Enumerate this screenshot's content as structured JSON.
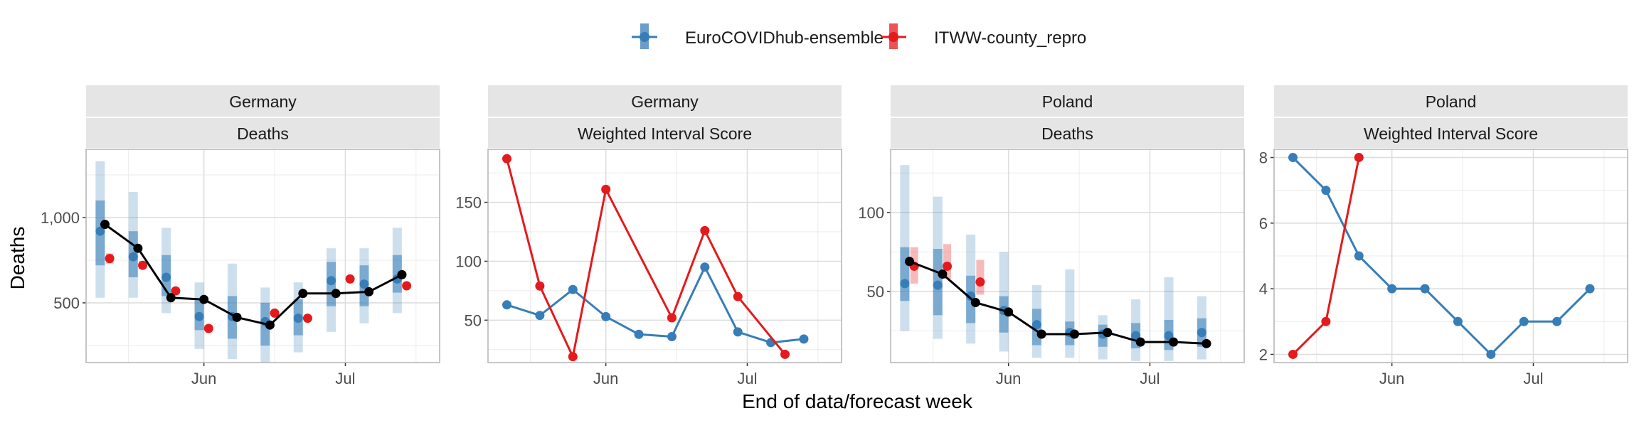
{
  "figure": {
    "ylabel": "Deaths",
    "xlabel": "End of data/forecast week"
  },
  "legend": {
    "placement": "top",
    "items": [
      {
        "name": "EuroCOVIDhub-ensemble",
        "color": "#377EB8"
      },
      {
        "name": "ITWW-county_repro",
        "color": "#E41A1C"
      }
    ]
  },
  "chart_data": [
    {
      "type": "line",
      "strip_top": "Germany",
      "strip_bottom": "Deaths",
      "ylim": [
        150,
        1400
      ],
      "yticks": [
        500,
        1000
      ],
      "ytick_labels": [
        "500",
        "1,000"
      ],
      "xticks": [
        "2021-06-01",
        "2021-07-01"
      ],
      "xtick_labels": [
        "Jun",
        "Jul"
      ],
      "xlim": [
        "2021-05-07",
        "2021-07-21"
      ],
      "grid": true,
      "observed": {
        "color": "#000000",
        "x": [
          "2021-05-11",
          "2021-05-18",
          "2021-05-25",
          "2021-06-01",
          "2021-06-08",
          "2021-06-15",
          "2021-06-22",
          "2021-06-29",
          "2021-07-06",
          "2021-07-13"
        ],
        "y": [
          960,
          820,
          530,
          520,
          415,
          370,
          555,
          555,
          565,
          665
        ]
      },
      "forecasts": [
        {
          "model": "EuroCOVIDhub-ensemble",
          "color": "#377EB8",
          "x": [
            "2021-05-10",
            "2021-05-17",
            "2021-05-24",
            "2021-05-31",
            "2021-06-07",
            "2021-06-14",
            "2021-06-21",
            "2021-06-28",
            "2021-07-05",
            "2021-07-12"
          ],
          "median": [
            920,
            770,
            650,
            420,
            420,
            390,
            410,
            630,
            610,
            640
          ],
          "inner": [
            [
              720,
              1100
            ],
            [
              650,
              920
            ],
            [
              540,
              780
            ],
            [
              340,
              520
            ],
            [
              290,
              540
            ],
            [
              250,
              500
            ],
            [
              310,
              520
            ],
            [
              480,
              740
            ],
            [
              480,
              720
            ],
            [
              560,
              780
            ]
          ],
          "outer": [
            [
              530,
              1330
            ],
            [
              530,
              1150
            ],
            [
              440,
              940
            ],
            [
              230,
              620
            ],
            [
              170,
              730
            ],
            [
              150,
              590
            ],
            [
              210,
              620
            ],
            [
              330,
              820
            ],
            [
              380,
              820
            ],
            [
              440,
              940
            ]
          ]
        },
        {
          "model": "ITWW-county_repro",
          "color": "#E41A1C",
          "x": [
            "2021-05-10",
            "2021-05-17",
            "2021-05-24",
            "2021-05-31",
            "2021-06-07",
            "2021-06-14",
            "2021-06-21",
            "2021-06-28",
            "2021-07-05",
            "2021-07-12"
          ],
          "median": [
            760,
            720,
            570,
            350,
            440,
            410,
            640,
            600
          ],
          "x_median": [
            "2021-05-12",
            "2021-05-19",
            "2021-05-26",
            "2021-06-02",
            "2021-06-16",
            "2021-06-23",
            "2021-07-02",
            "2021-07-14"
          ],
          "inner": [
            [
              730,
              790
            ],
            [
              700,
              745
            ],
            [
              550,
              590
            ],
            [
              335,
              370
            ],
            [
              425,
              455
            ],
            [
              395,
              425
            ],
            [
              625,
              655
            ],
            [
              585,
              615
            ]
          ]
        }
      ]
    },
    {
      "type": "line",
      "strip_top": "Germany",
      "strip_bottom": "Weighted Interval Score",
      "ylim": [
        14,
        195
      ],
      "yticks": [
        50,
        100,
        150
      ],
      "ytick_labels": [
        "50",
        "100",
        "150"
      ],
      "xticks": [
        "2021-06-01",
        "2021-07-01"
      ],
      "xtick_labels": [
        "Jun",
        "Jul"
      ],
      "xlim": [
        "2021-05-07",
        "2021-07-21"
      ],
      "grid": true,
      "series": [
        {
          "name": "EuroCOVIDhub-ensemble",
          "color": "#377EB8",
          "x": [
            "2021-05-11",
            "2021-05-18",
            "2021-05-25",
            "2021-06-01",
            "2021-06-08",
            "2021-06-15",
            "2021-06-22",
            "2021-06-29",
            "2021-07-06",
            "2021-07-13"
          ],
          "y": [
            63,
            54,
            76,
            53,
            38,
            36,
            95,
            40,
            31,
            34
          ]
        },
        {
          "name": "ITWW-county_repro",
          "color": "#E41A1C",
          "x": [
            "2021-05-11",
            "2021-05-18",
            "2021-05-25",
            "2021-06-01",
            "2021-06-15",
            "2021-06-22",
            "2021-06-29",
            "2021-07-09"
          ],
          "y": [
            187,
            79,
            19,
            161,
            52,
            126,
            70,
            21
          ]
        }
      ]
    },
    {
      "type": "line",
      "strip_top": "Poland",
      "strip_bottom": "Deaths",
      "ylim": [
        5,
        140
      ],
      "yticks": [
        50,
        100
      ],
      "ytick_labels": [
        "50",
        "100"
      ],
      "xticks": [
        "2021-06-01",
        "2021-07-01"
      ],
      "xtick_labels": [
        "Jun",
        "Jul"
      ],
      "xlim": [
        "2021-05-07",
        "2021-07-21"
      ],
      "grid": true,
      "observed": {
        "color": "#000000",
        "x": [
          "2021-05-11",
          "2021-05-18",
          "2021-05-25",
          "2021-06-01",
          "2021-06-08",
          "2021-06-15",
          "2021-06-22",
          "2021-06-29",
          "2021-07-06",
          "2021-07-13"
        ],
        "y": [
          69,
          61,
          43,
          37,
          23,
          23,
          24,
          18,
          18,
          17
        ]
      },
      "forecasts": [
        {
          "model": "EuroCOVIDhub-ensemble",
          "color": "#377EB8",
          "x": [
            "2021-05-10",
            "2021-05-17",
            "2021-05-24",
            "2021-05-31",
            "2021-06-07",
            "2021-06-14",
            "2021-06-21",
            "2021-06-28",
            "2021-07-05",
            "2021-07-12"
          ],
          "median": [
            55,
            54,
            47,
            38,
            29,
            24,
            23,
            22,
            22,
            24
          ],
          "inner": [
            [
              44,
              78
            ],
            [
              35,
              77
            ],
            [
              30,
              60
            ],
            [
              24,
              47
            ],
            [
              16,
              39
            ],
            [
              16,
              31
            ],
            [
              15,
              29
            ],
            [
              14,
              30
            ],
            [
              13,
              32
            ],
            [
              15,
              33
            ]
          ],
          "outer": [
            [
              25,
              130
            ],
            [
              20,
              110
            ],
            [
              17,
              86
            ],
            [
              12,
              75
            ],
            [
              8,
              54
            ],
            [
              8,
              64
            ],
            [
              7,
              35
            ],
            [
              6,
              45
            ],
            [
              6,
              59
            ],
            [
              7,
              47
            ]
          ]
        },
        {
          "model": "ITWW-county_repro",
          "color": "#E41A1C",
          "x": [
            "2021-05-10",
            "2021-05-17",
            "2021-05-24"
          ],
          "median": [
            66,
            66,
            56
          ],
          "x_median": [
            "2021-05-12",
            "2021-05-19",
            "2021-05-26"
          ],
          "inner": [
            [
              55,
              78
            ],
            [
              58,
              80
            ],
            [
              48,
              70
            ]
          ]
        }
      ]
    },
    {
      "type": "line",
      "strip_top": "Poland",
      "strip_bottom": "Weighted Interval Score",
      "ylim": [
        1.75,
        8.25
      ],
      "yticks": [
        2,
        4,
        6,
        8
      ],
      "ytick_labels": [
        "2",
        "4",
        "6",
        "8"
      ],
      "xticks": [
        "2021-06-01",
        "2021-07-01"
      ],
      "xtick_labels": [
        "Jun",
        "Jul"
      ],
      "xlim": [
        "2021-05-07",
        "2021-07-21"
      ],
      "grid": true,
      "series": [
        {
          "name": "EuroCOVIDhub-ensemble",
          "color": "#377EB8",
          "x": [
            "2021-05-11",
            "2021-05-18",
            "2021-05-25",
            "2021-06-01",
            "2021-06-08",
            "2021-06-15",
            "2021-06-22",
            "2021-06-29",
            "2021-07-06",
            "2021-07-13"
          ],
          "y": [
            8,
            7,
            5,
            4,
            4,
            3,
            2,
            3,
            3,
            4
          ]
        },
        {
          "name": "ITWW-county_repro",
          "color": "#E41A1C",
          "x": [
            "2021-05-11",
            "2021-05-18",
            "2021-05-25"
          ],
          "y": [
            2,
            3,
            8
          ]
        }
      ]
    }
  ]
}
